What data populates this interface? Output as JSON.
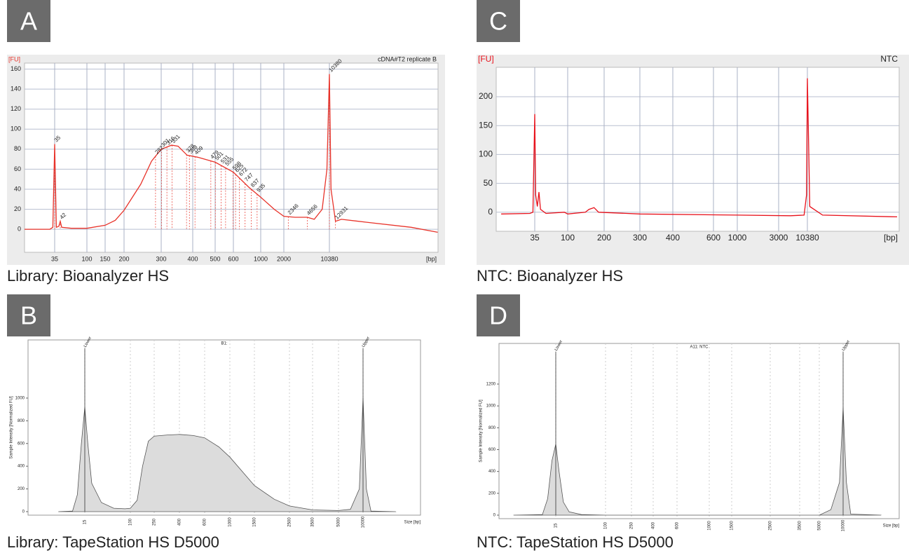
{
  "chart_data": [
    {
      "type": "line",
      "panel_label": "A",
      "caption": "Library: Bioanalyzer HS",
      "title": "cDNA#T2 replicate B",
      "y_label": "[FU]",
      "x_label": "[bp]",
      "color": "#e8332a",
      "grid": true,
      "x": [
        12,
        30,
        33,
        35,
        37,
        40,
        42,
        44,
        60,
        100,
        150,
        175,
        200,
        240,
        270,
        300,
        330,
        350,
        380,
        420,
        500,
        600,
        700,
        800,
        1000,
        1500,
        2000,
        3000,
        4656,
        6000,
        8000,
        9500,
        10380,
        11000,
        12931,
        16000,
        40000,
        200000,
        520000
      ],
      "values": [
        0,
        0,
        2,
        85,
        2,
        3,
        8,
        2,
        1,
        1,
        4,
        9,
        19,
        45,
        68,
        80,
        84,
        83,
        74,
        72,
        67,
        57,
        49,
        42,
        32,
        20,
        13,
        12,
        12,
        10,
        20,
        60,
        155,
        40,
        8,
        10,
        7,
        2,
        -3
      ],
      "xticks": [
        35,
        100,
        150,
        200,
        300,
        400,
        500,
        600,
        1000,
        2000,
        10380
      ],
      "ylim": [
        -23,
        166
      ],
      "yticks": [
        0,
        20,
        40,
        60,
        80,
        100,
        120,
        140,
        160
      ],
      "peaks": [
        35,
        42,
        282,
        301,
        316,
        331,
        378,
        388,
        409,
        479,
        501,
        531,
        555,
        598,
        625,
        672,
        747,
        837,
        935,
        2346,
        4656,
        10380,
        12931
      ]
    },
    {
      "type": "area",
      "panel_label": "B",
      "caption": "Library: TapeStation HS D5000",
      "title": "B1:",
      "y_label": "Sample Intensity [Normalized FU]",
      "x_label": "Size [bp]",
      "color": "#555555",
      "fill": "#dcdcdc",
      "grid": false,
      "x": [
        5,
        9,
        11,
        13,
        15,
        17,
        20,
        30,
        50,
        80,
        100,
        130,
        160,
        200,
        250,
        320,
        400,
        500,
        600,
        800,
        1000,
        1500,
        2000,
        2500,
        3500,
        5000,
        7000,
        9000,
        10000,
        11000,
        12500,
        25000
      ],
      "values": [
        0,
        5,
        150,
        600,
        920,
        600,
        250,
        80,
        30,
        25,
        30,
        100,
        400,
        620,
        665,
        675,
        680,
        670,
        650,
        570,
        480,
        230,
        110,
        50,
        15,
        10,
        20,
        200,
        1000,
        200,
        5,
        0
      ],
      "xticks": [
        15,
        100,
        250,
        400,
        600,
        1000,
        1500,
        2500,
        3500,
        5000,
        10000
      ],
      "ylim": [
        -31,
        1512
      ],
      "yticks": [
        0,
        200,
        400,
        600,
        800,
        1000
      ],
      "markers": [
        {
          "label": "Lower",
          "x": 15
        },
        {
          "label": "Upper",
          "x": 10000
        }
      ]
    },
    {
      "type": "line",
      "panel_label": "C",
      "caption": "NTC: Bioanalyzer HS",
      "title": "NTC",
      "y_label": "[FU]",
      "x_label": "[bp]",
      "color": "#e8101a",
      "grid": true,
      "x": [
        12,
        30,
        33,
        35,
        36,
        38,
        40,
        42,
        50,
        90,
        100,
        140,
        150,
        165,
        180,
        300,
        1000,
        5000,
        9000,
        10000,
        10380,
        10800,
        11500,
        20000,
        500000
      ],
      "values": [
        -3,
        -2,
        0,
        170,
        30,
        10,
        35,
        5,
        -2,
        0,
        -3,
        0,
        5,
        8,
        0,
        -3,
        -5,
        -6,
        -5,
        30,
        232,
        150,
        10,
        -5,
        -8
      ],
      "xticks": [
        35,
        100,
        200,
        300,
        400,
        600,
        1000,
        3000,
        10380
      ],
      "ylim": [
        -33,
        251
      ],
      "yticks": [
        0,
        50,
        100,
        150,
        200
      ]
    },
    {
      "type": "area",
      "panel_label": "D",
      "caption": "NTC: TapeStation HS D5000",
      "title": "A11: NTC",
      "y_label": "Sample Intensity [Normalized FU]",
      "x_label": "Size [bp]",
      "color": "#555555",
      "fill": "#dcdcdc",
      "grid": false,
      "x": [
        3,
        9,
        11,
        13,
        15,
        17,
        20,
        25,
        40,
        100,
        5000,
        7000,
        9000,
        10000,
        11000,
        12500,
        30000
      ],
      "values": [
        0,
        5,
        150,
        500,
        650,
        400,
        120,
        30,
        5,
        0,
        0,
        50,
        300,
        980,
        300,
        10,
        0
      ],
      "xticks": [
        15,
        100,
        250,
        400,
        600,
        1000,
        1500,
        2500,
        3500,
        5000,
        10000
      ],
      "ylim": [
        -32,
        1572
      ],
      "yticks": [
        0,
        200,
        400,
        600,
        800,
        1000,
        1200
      ],
      "markers": [
        {
          "label": "Lower",
          "x": 15
        },
        {
          "label": "Upper",
          "x": 10000
        }
      ]
    }
  ]
}
